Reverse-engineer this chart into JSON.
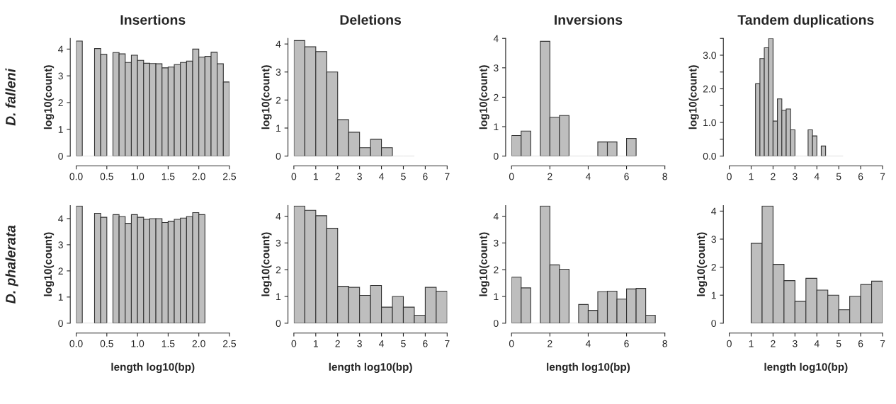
{
  "chart_data": [
    {
      "type": "histogram",
      "title": "Insertions",
      "ylabel": "log10(count)",
      "annotations": [
        "D. falleni"
      ],
      "color": "#bebebe",
      "bins": [
        0.0,
        0.1,
        0.2,
        0.3,
        0.4,
        0.5,
        0.6,
        0.7,
        0.8,
        0.9,
        1.0,
        1.1,
        1.2,
        1.3,
        1.4,
        1.5,
        1.6,
        1.7,
        1.8,
        1.9,
        2.0,
        2.1,
        2.2,
        2.3,
        2.4,
        2.5
      ],
      "values": [
        4.3,
        0,
        0,
        4.02,
        3.8,
        0,
        3.87,
        3.82,
        3.5,
        3.77,
        3.58,
        3.47,
        3.46,
        3.45,
        3.3,
        3.33,
        3.42,
        3.5,
        3.55,
        4.0,
        3.7,
        3.73,
        3.88,
        3.45,
        2.77
      ],
      "xlim": [
        0,
        2.5
      ],
      "xticks": [
        {
          "value": 0,
          "label": "0.0"
        },
        {
          "value": 0.5,
          "label": "0.5"
        },
        {
          "value": 1,
          "label": "1.0"
        },
        {
          "value": 1.5,
          "label": "1.5"
        },
        {
          "value": 2,
          "label": "2.0"
        },
        {
          "value": 2.5,
          "label": "2.5"
        }
      ],
      "ylim": [
        0,
        4.4
      ],
      "yticks": [
        0,
        1,
        2,
        3,
        4
      ],
      "grid": false
    },
    {
      "type": "histogram",
      "title": "Deletions",
      "ylabel": "log10(count)",
      "color": "#bebebe",
      "bins": [
        0,
        0.5,
        1,
        1.5,
        2,
        2.5,
        3,
        3.5,
        4,
        4.5,
        5,
        5.5
      ],
      "values": [
        4.12,
        3.9,
        3.73,
        3.0,
        1.3,
        0.85,
        0.3,
        0.6,
        0.3,
        0,
        0
      ],
      "xlim": [
        0,
        7
      ],
      "xticks": [
        0,
        1,
        2,
        3,
        4,
        5,
        6,
        7
      ],
      "ylim": [
        0,
        4.2
      ],
      "yticks": [
        0,
        1,
        2,
        3,
        4
      ],
      "grid": false
    },
    {
      "type": "histogram",
      "title": "Inversions",
      "ylabel": "log10(count)",
      "color": "#bebebe",
      "bins": [
        0,
        0.5,
        1,
        1.5,
        2,
        2.5,
        3,
        3.5,
        4,
        4.5,
        5,
        5.5,
        6,
        6.5
      ],
      "values": [
        0.7,
        0.85,
        0,
        3.9,
        1.32,
        1.38,
        0,
        0,
        0,
        0.48,
        0.48,
        0,
        0.6
      ],
      "xlim": [
        0,
        8
      ],
      "xticks": [
        0,
        2,
        4,
        6,
        8
      ],
      "ylim": [
        0,
        4
      ],
      "yticks": [
        0,
        1,
        2,
        3,
        4
      ],
      "grid": false
    },
    {
      "type": "histogram",
      "title": "Tandem duplications",
      "ylabel": "log10(count)",
      "color": "#bebebe",
      "bins": [
        1.2,
        1.4,
        1.6,
        1.8,
        2.0,
        2.2,
        2.4,
        2.6,
        2.8,
        3.0,
        3.2,
        3.4,
        3.6,
        3.8,
        4.0,
        4.2,
        4.4,
        4.6,
        4.8,
        5.0,
        5.2
      ],
      "values": [
        2.15,
        2.9,
        3.22,
        3.5,
        1.04,
        1.7,
        1.36,
        1.4,
        0.78,
        0,
        0,
        0,
        0.78,
        0.6,
        0,
        0.3,
        0,
        0,
        0,
        0
      ],
      "xlim": [
        0,
        7
      ],
      "xticks": [
        0,
        1,
        2,
        3,
        4,
        5,
        6,
        7
      ],
      "ylim": [
        0,
        3.5
      ],
      "yticks": [
        {
          "value": 0,
          "label": "0.0"
        },
        {
          "value": 0.5,
          "label": null
        },
        {
          "value": 1,
          "label": "1.0"
        },
        {
          "value": 1.5,
          "label": null
        },
        {
          "value": 2,
          "label": "2.0"
        },
        {
          "value": 2.5,
          "label": null
        },
        {
          "value": 3,
          "label": "3.0"
        },
        {
          "value": 3.5,
          "label": null
        }
      ],
      "grid": false
    },
    {
      "type": "histogram",
      "xlabel": "length log10(bp)",
      "ylabel": "log10(count)",
      "annotations": [
        "D. phalerata"
      ],
      "color": "#bebebe",
      "bins": [
        0.0,
        0.1,
        0.2,
        0.3,
        0.4,
        0.5,
        0.6,
        0.7,
        0.8,
        0.9,
        1.0,
        1.1,
        1.2,
        1.3,
        1.4,
        1.5,
        1.6,
        1.7,
        1.8,
        1.9,
        2.0,
        2.1
      ],
      "values": [
        4.48,
        0,
        0,
        4.2,
        4.05,
        0,
        4.15,
        4.08,
        3.82,
        4.15,
        4.05,
        3.97,
        4.0,
        4.0,
        3.85,
        3.9,
        3.97,
        4.02,
        4.08,
        4.23,
        4.15
      ],
      "xlim": [
        0,
        2.5
      ],
      "xticks": [
        {
          "value": 0,
          "label": "0.0"
        },
        {
          "value": 0.5,
          "label": "0.5"
        },
        {
          "value": 1,
          "label": "1.0"
        },
        {
          "value": 1.5,
          "label": "1.5"
        },
        {
          "value": 2,
          "label": "2.0"
        },
        {
          "value": 2.5,
          "label": "2.5"
        }
      ],
      "ylim": [
        0,
        4.5
      ],
      "yticks": [
        0,
        1,
        2,
        3,
        4
      ],
      "grid": false
    },
    {
      "type": "histogram",
      "xlabel": "length log10(bp)",
      "ylabel": "log10(count)",
      "color": "#bebebe",
      "bins": [
        0,
        0.5,
        1,
        1.5,
        2,
        2.5,
        3,
        3.5,
        4,
        4.5,
        5,
        5.5,
        6,
        6.5,
        7
      ],
      "values": [
        4.38,
        4.22,
        4.02,
        3.55,
        1.38,
        1.34,
        1.04,
        1.41,
        0.6,
        1.0,
        0.6,
        0.3,
        1.34,
        1.2
      ],
      "xlim": [
        0,
        7
      ],
      "xticks": [
        0,
        1,
        2,
        3,
        4,
        5,
        6,
        7
      ],
      "ylim": [
        0,
        4.4
      ],
      "yticks": [
        0,
        1,
        2,
        3,
        4
      ],
      "grid": false
    },
    {
      "type": "histogram",
      "xlabel": "length log10(bp)",
      "ylabel": "log10(count)",
      "color": "#bebebe",
      "bins": [
        0,
        0.5,
        1,
        1.5,
        2,
        2.5,
        3,
        3.5,
        4,
        4.5,
        5,
        5.5,
        6,
        6.5,
        7,
        7.5
      ],
      "values": [
        1.72,
        1.32,
        0,
        4.38,
        2.18,
        2.02,
        0,
        0.7,
        0.48,
        1.18,
        1.2,
        0.9,
        1.28,
        1.3,
        0.3
      ],
      "xlim": [
        0,
        8
      ],
      "xticks": [
        0,
        2,
        4,
        6,
        8
      ],
      "ylim": [
        0,
        4.4
      ],
      "yticks": [
        0,
        1,
        2,
        3,
        4
      ],
      "grid": false
    },
    {
      "type": "histogram",
      "xlabel": "length log10(bp)",
      "ylabel": "log10(count)",
      "color": "#bebebe",
      "bins": [
        1,
        1.5,
        2,
        2.5,
        3,
        3.5,
        4,
        4.5,
        5,
        5.5,
        6,
        6.5,
        7
      ],
      "values": [
        2.85,
        4.18,
        2.1,
        1.52,
        0.78,
        1.6,
        1.18,
        1.0,
        0.48,
        0.96,
        1.38,
        1.5
      ],
      "xlim": [
        0,
        7
      ],
      "xticks": [
        0,
        1,
        2,
        3,
        4,
        5,
        6,
        7
      ],
      "ylim": [
        0,
        4.2
      ],
      "yticks": [
        0,
        1,
        2,
        3,
        4
      ],
      "grid": false
    }
  ]
}
